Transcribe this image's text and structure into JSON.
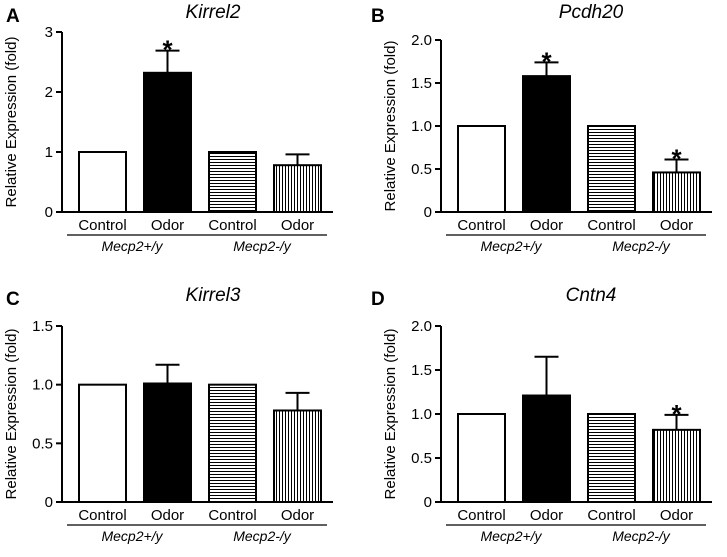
{
  "chart_data": [
    {
      "panel": "A",
      "type": "bar",
      "title": "Kirrel2",
      "ylabel": "Relative Expression (fold)",
      "ylim": [
        0,
        3
      ],
      "yticks": [
        "0",
        "1",
        "2",
        "3"
      ],
      "categories": [
        "Control",
        "Odor",
        "Control",
        "Odor"
      ],
      "groups": [
        "Mecp2+/y",
        "Mecp2-/y"
      ],
      "values": [
        1.0,
        2.32,
        1.0,
        0.78
      ],
      "errors": [
        0,
        0.37,
        0,
        0.18
      ],
      "significance": [
        "",
        "*",
        "",
        ""
      ],
      "fills": [
        "white",
        "black",
        "hlines",
        "vlines"
      ]
    },
    {
      "panel": "B",
      "type": "bar",
      "title": "Pcdh20",
      "ylabel": "Relative Expression (fold)",
      "ylim": [
        0,
        2.0
      ],
      "yticks": [
        "0",
        "0.5",
        "1.0",
        "1.5",
        "2.0"
      ],
      "categories": [
        "Control",
        "Odor",
        "Control",
        "Odor"
      ],
      "groups": [
        "Mecp2+/y",
        "Mecp2-/y"
      ],
      "values": [
        1.0,
        1.58,
        1.0,
        0.46
      ],
      "errors": [
        0,
        0.16,
        0,
        0.15
      ],
      "significance": [
        "",
        "*",
        "",
        "*"
      ],
      "fills": [
        "white",
        "black",
        "hlines",
        "vlines"
      ]
    },
    {
      "panel": "C",
      "type": "bar",
      "title": "Kirrel3",
      "ylabel": "Relative Expression (fold)",
      "ylim": [
        0,
        1.5
      ],
      "yticks": [
        "0",
        "0.5",
        "1.0",
        "1.5"
      ],
      "categories": [
        "Control",
        "Odor",
        "Control",
        "Odor"
      ],
      "groups": [
        "Mecp2+/y",
        "Mecp2-/y"
      ],
      "values": [
        1.0,
        1.01,
        1.0,
        0.78
      ],
      "errors": [
        0,
        0.16,
        0,
        0.15
      ],
      "significance": [
        "",
        "",
        "",
        ""
      ],
      "fills": [
        "white",
        "black",
        "hlines",
        "vlines"
      ]
    },
    {
      "panel": "D",
      "type": "bar",
      "title": "Cntn4",
      "ylabel": "Relative Expression (fold)",
      "ylim": [
        0,
        2.0
      ],
      "yticks": [
        "0",
        "0.5",
        "1.0",
        "1.5",
        "2.0"
      ],
      "categories": [
        "Control",
        "Odor",
        "Control",
        "Odor"
      ],
      "groups": [
        "Mecp2+/y",
        "Mecp2-/y"
      ],
      "values": [
        1.0,
        1.21,
        1.0,
        0.82
      ],
      "errors": [
        0,
        0.44,
        0,
        0.17
      ],
      "significance": [
        "",
        "",
        "",
        "*"
      ],
      "fills": [
        "white",
        "black",
        "hlines",
        "vlines"
      ]
    }
  ]
}
